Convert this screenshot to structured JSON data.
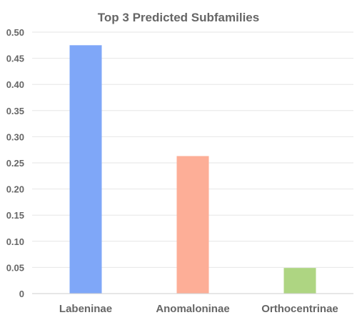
{
  "chart_data": {
    "type": "bar",
    "title": "Top 3 Predicted Subfamilies",
    "xlabel": "",
    "ylabel": "",
    "categories": [
      "Labeninae",
      "Anomaloninae",
      "Orthocentrinae"
    ],
    "values": [
      0.475,
      0.263,
      0.049
    ],
    "colors": [
      "#7fa7f8",
      "#fdae97",
      "#aed582"
    ],
    "ylim": [
      0,
      0.5
    ],
    "yticks": [
      "0",
      "0.05",
      "0.10",
      "0.15",
      "0.20",
      "0.25",
      "0.30",
      "0.35",
      "0.40",
      "0.45",
      "0.50"
    ],
    "grid": true,
    "legend": "none"
  }
}
